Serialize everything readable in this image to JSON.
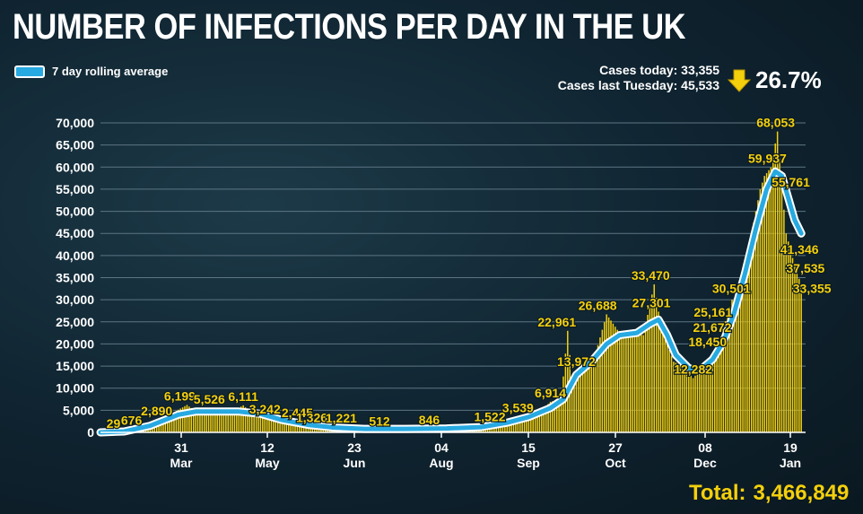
{
  "title": "NUMBER OF INFECTIONS PER DAY IN THE UK",
  "legend": {
    "label": "7 day rolling average"
  },
  "summary": {
    "cases_today_label": "Cases today: 33,355",
    "cases_last_label": "Cases last Tuesday: 45,533",
    "change": "26.7%"
  },
  "total": {
    "label": "Total:",
    "value": "3,466,849"
  },
  "colors": {
    "bars": "#f4d00c",
    "average_line": "#27a9e1",
    "line_outline": "#ffffff",
    "text": "#ffffff",
    "arrow": "#f4d00c"
  },
  "icons": {
    "change_arrow": "down-arrow-icon"
  },
  "chart_data": {
    "type": "bar",
    "ylim": [
      0,
      70000
    ],
    "y_ticks": [
      0,
      5000,
      10000,
      15000,
      20000,
      25000,
      30000,
      35000,
      40000,
      45000,
      50000,
      55000,
      60000,
      65000,
      70000
    ],
    "y_tick_labels": [
      "0",
      "5,000",
      "10,000",
      "15,000",
      "20,000",
      "25,000",
      "30,000",
      "35,000",
      "40,000",
      "45,000",
      "50,000",
      "55,000",
      "60,000",
      "65,000",
      "70,000"
    ],
    "x_ticks": [
      {
        "day": "31",
        "month": "Mar"
      },
      {
        "day": "12",
        "month": "May"
      },
      {
        "day": "23",
        "month": "Jun"
      },
      {
        "day": "04",
        "month": "Aug"
      },
      {
        "day": "15",
        "month": "Sep"
      },
      {
        "day": "27",
        "month": "Oct"
      },
      {
        "day": "08",
        "month": "Dec"
      },
      {
        "day": "19",
        "month": "Jan"
      }
    ],
    "grid": true,
    "series_daily": [
      {
        "date": "2020-03-01",
        "value": 0
      },
      {
        "date": "2020-03-07",
        "value": 29
      },
      {
        "date": "2020-03-13",
        "value": 200
      },
      {
        "date": "2020-03-17",
        "value": 676
      },
      {
        "date": "2020-03-23",
        "value": 1100
      },
      {
        "date": "2020-03-27",
        "value": 2890
      },
      {
        "date": "2020-04-03",
        "value": 4300
      },
      {
        "date": "2020-04-10",
        "value": 6199
      },
      {
        "date": "2020-04-14",
        "value": 4800
      },
      {
        "date": "2020-04-17",
        "value": 5526
      },
      {
        "date": "2020-04-24",
        "value": 4900
      },
      {
        "date": "2020-05-01",
        "value": 4700
      },
      {
        "date": "2020-05-06",
        "value": 6111
      },
      {
        "date": "2020-05-11",
        "value": 3900
      },
      {
        "date": "2020-05-16",
        "value": 3242
      },
      {
        "date": "2020-05-24",
        "value": 2700
      },
      {
        "date": "2020-05-31",
        "value": 2445
      },
      {
        "date": "2020-06-07",
        "value": 1600
      },
      {
        "date": "2020-06-10",
        "value": 1326
      },
      {
        "date": "2020-06-17",
        "value": 1221
      },
      {
        "date": "2020-06-27",
        "value": 900
      },
      {
        "date": "2020-07-08",
        "value": 512
      },
      {
        "date": "2020-07-20",
        "value": 700
      },
      {
        "date": "2020-07-31",
        "value": 846
      },
      {
        "date": "2020-08-16",
        "value": 1100
      },
      {
        "date": "2020-08-28",
        "value": 1522
      },
      {
        "date": "2020-09-06",
        "value": 2800
      },
      {
        "date": "2020-09-10",
        "value": 3539
      },
      {
        "date": "2020-09-20",
        "value": 4500
      },
      {
        "date": "2020-09-25",
        "value": 6914
      },
      {
        "date": "2020-09-30",
        "value": 7500
      },
      {
        "date": "2020-10-03",
        "value": 22961
      },
      {
        "date": "2020-10-05",
        "value": 12000
      },
      {
        "date": "2020-10-07",
        "value": 13972
      },
      {
        "date": "2020-10-12",
        "value": 15000
      },
      {
        "date": "2020-10-16",
        "value": 18000
      },
      {
        "date": "2020-10-21",
        "value": 26688
      },
      {
        "date": "2020-10-27",
        "value": 22500
      },
      {
        "date": "2020-11-03",
        "value": 23000
      },
      {
        "date": "2020-11-07",
        "value": 22000
      },
      {
        "date": "2020-11-12",
        "value": 33470
      },
      {
        "date": "2020-11-14",
        "value": 27301
      },
      {
        "date": "2020-11-18",
        "value": 20000
      },
      {
        "date": "2020-11-21",
        "value": 16000
      },
      {
        "date": "2020-11-25",
        "value": 15000
      },
      {
        "date": "2020-11-30",
        "value": 12282
      },
      {
        "date": "2020-12-05",
        "value": 15000
      },
      {
        "date": "2020-12-10",
        "value": 18450
      },
      {
        "date": "2020-12-13",
        "value": 21672
      },
      {
        "date": "2020-12-15",
        "value": 25161
      },
      {
        "date": "2020-12-18",
        "value": 30000
      },
      {
        "date": "2020-12-21",
        "value": 30501
      },
      {
        "date": "2020-12-24",
        "value": 38000
      },
      {
        "date": "2020-12-27",
        "value": 45000
      },
      {
        "date": "2020-12-29",
        "value": 50000
      },
      {
        "date": "2020-12-31",
        "value": 55000
      },
      {
        "date": "2021-01-02",
        "value": 58000
      },
      {
        "date": "2021-01-05",
        "value": 59937
      },
      {
        "date": "2021-01-08",
        "value": 68053
      },
      {
        "date": "2021-01-10",
        "value": 55761
      },
      {
        "date": "2021-01-12",
        "value": 45000
      },
      {
        "date": "2021-01-14",
        "value": 41346
      },
      {
        "date": "2021-01-16",
        "value": 37535
      },
      {
        "date": "2021-01-19",
        "value": 33355
      }
    ],
    "series_average": [
      {
        "date": "2020-03-01",
        "value": 0
      },
      {
        "date": "2020-03-12",
        "value": 200
      },
      {
        "date": "2020-03-24",
        "value": 1500
      },
      {
        "date": "2020-04-06",
        "value": 4000
      },
      {
        "date": "2020-04-14",
        "value": 4700
      },
      {
        "date": "2020-04-24",
        "value": 4700
      },
      {
        "date": "2020-05-04",
        "value": 4700
      },
      {
        "date": "2020-05-14",
        "value": 4200
      },
      {
        "date": "2020-05-24",
        "value": 2800
      },
      {
        "date": "2020-06-05",
        "value": 1700
      },
      {
        "date": "2020-06-17",
        "value": 1100
      },
      {
        "date": "2020-07-01",
        "value": 800
      },
      {
        "date": "2020-07-20",
        "value": 800
      },
      {
        "date": "2020-08-08",
        "value": 900
      },
      {
        "date": "2020-08-24",
        "value": 1200
      },
      {
        "date": "2020-09-05",
        "value": 2200
      },
      {
        "date": "2020-09-15",
        "value": 3500
      },
      {
        "date": "2020-09-25",
        "value": 5500
      },
      {
        "date": "2020-10-01",
        "value": 7500
      },
      {
        "date": "2020-10-07",
        "value": 13000
      },
      {
        "date": "2020-10-14",
        "value": 16000
      },
      {
        "date": "2020-10-21",
        "value": 20000
      },
      {
        "date": "2020-10-27",
        "value": 22000
      },
      {
        "date": "2020-11-04",
        "value": 22500
      },
      {
        "date": "2020-11-10",
        "value": 24500
      },
      {
        "date": "2020-11-14",
        "value": 25500
      },
      {
        "date": "2020-11-18",
        "value": 22000
      },
      {
        "date": "2020-11-22",
        "value": 17500
      },
      {
        "date": "2020-11-28",
        "value": 14500
      },
      {
        "date": "2020-12-03",
        "value": 14000
      },
      {
        "date": "2020-12-09",
        "value": 16500
      },
      {
        "date": "2020-12-14",
        "value": 20500
      },
      {
        "date": "2020-12-19",
        "value": 27000
      },
      {
        "date": "2020-12-24",
        "value": 36000
      },
      {
        "date": "2020-12-29",
        "value": 46000
      },
      {
        "date": "2021-01-03",
        "value": 55000
      },
      {
        "date": "2021-01-07",
        "value": 59000
      },
      {
        "date": "2021-01-10",
        "value": 58000
      },
      {
        "date": "2021-01-13",
        "value": 53000
      },
      {
        "date": "2021-01-16",
        "value": 48000
      },
      {
        "date": "2021-01-19",
        "value": 45000
      }
    ],
    "annotations": [
      {
        "date": "2020-03-07",
        "value": 29,
        "text": "29"
      },
      {
        "date": "2020-03-17",
        "value": 676,
        "text": "676"
      },
      {
        "date": "2020-03-27",
        "value": 2890,
        "text": "2,890"
      },
      {
        "date": "2020-04-10",
        "value": 6199,
        "text": "6,199"
      },
      {
        "date": "2020-04-17",
        "value": 5526,
        "text": "5,526"
      },
      {
        "date": "2020-05-06",
        "value": 6111,
        "text": "6,111"
      },
      {
        "date": "2020-05-16",
        "value": 3242,
        "text": "3,242"
      },
      {
        "date": "2020-05-31",
        "value": 2445,
        "text": "2,445"
      },
      {
        "date": "2020-06-10",
        "value": 1326,
        "text": "1,326"
      },
      {
        "date": "2020-06-17",
        "value": 1221,
        "text": "1,221"
      },
      {
        "date": "2020-07-08",
        "value": 512,
        "text": "512"
      },
      {
        "date": "2020-07-31",
        "value": 846,
        "text": "846"
      },
      {
        "date": "2020-08-28",
        "value": 1522,
        "text": "1,522"
      },
      {
        "date": "2020-09-10",
        "value": 3539,
        "text": "3,539"
      },
      {
        "date": "2020-09-25",
        "value": 6914,
        "text": "6,914"
      },
      {
        "date": "2020-10-03",
        "value": 22961,
        "text": "22,961"
      },
      {
        "date": "2020-10-07",
        "value": 13972,
        "text": "13,972"
      },
      {
        "date": "2020-10-21",
        "value": 26688,
        "text": "26,688"
      },
      {
        "date": "2020-11-12",
        "value": 33470,
        "text": "33,470"
      },
      {
        "date": "2020-11-14",
        "value": 27301,
        "text": "27,301"
      },
      {
        "date": "2020-11-30",
        "value": 12282,
        "text": "12,282"
      },
      {
        "date": "2020-12-10",
        "value": 18450,
        "text": "18,450"
      },
      {
        "date": "2020-12-13",
        "value": 21672,
        "text": "21,672"
      },
      {
        "date": "2020-12-15",
        "value": 25161,
        "text": "25,161"
      },
      {
        "date": "2020-12-21",
        "value": 30501,
        "text": "30,501"
      },
      {
        "date": "2021-01-05",
        "value": 59937,
        "text": "59,937"
      },
      {
        "date": "2021-01-08",
        "value": 68053,
        "text": "68,053"
      },
      {
        "date": "2021-01-10",
        "value": 55761,
        "text": "55,761"
      },
      {
        "date": "2021-01-14",
        "value": 41346,
        "text": "41,346"
      },
      {
        "date": "2021-01-16",
        "value": 37535,
        "text": "37,535"
      },
      {
        "date": "2021-01-19",
        "value": 33355,
        "text": "33,355"
      }
    ]
  }
}
